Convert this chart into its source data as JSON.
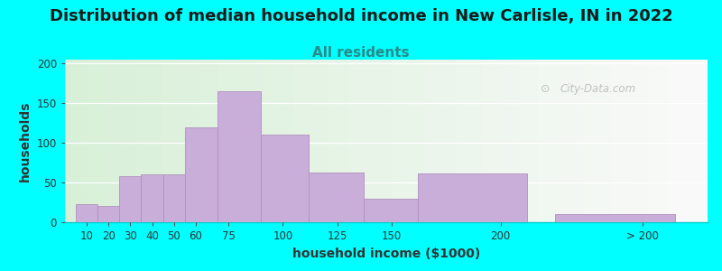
{
  "title": "Distribution of median household income in New Carlisle, IN in 2022",
  "subtitle": "All residents",
  "xlabel": "household income ($1000)",
  "ylabel": "households",
  "background_outer": "#00FFFF",
  "bar_color": "#c9aed9",
  "bar_edge_color": "#b090c0",
  "values": [
    23,
    20,
    58,
    60,
    60,
    120,
    165,
    110,
    63,
    30,
    62,
    10
  ],
  "bar_lefts": [
    5,
    15,
    25,
    35,
    45,
    55,
    70,
    90,
    112,
    137,
    162,
    225
  ],
  "bar_widths": [
    10,
    10,
    10,
    10,
    10,
    15,
    20,
    22,
    25,
    25,
    50,
    55
  ],
  "xtick_positions": [
    10,
    20,
    30,
    40,
    50,
    60,
    75,
    100,
    125,
    150,
    200,
    265
  ],
  "xtick_labels": [
    "10",
    "20",
    "30",
    "40",
    "50",
    "60",
    "75",
    "100",
    "125",
    "150",
    "200",
    "> 200"
  ],
  "ytick_positions": [
    0,
    50,
    100,
    150,
    200
  ],
  "ytick_labels": [
    "0",
    "50",
    "100",
    "150",
    "200"
  ],
  "xlim": [
    0,
    295
  ],
  "ylim": [
    0,
    205
  ],
  "watermark": "City-Data.com",
  "title_fontsize": 13,
  "subtitle_fontsize": 11,
  "axis_label_fontsize": 10,
  "tick_fontsize": 8.5,
  "subtitle_color": "#2a8a8a",
  "title_color": "#1a1a1a",
  "tick_color": "#333333",
  "axis_label_color": "#333333"
}
